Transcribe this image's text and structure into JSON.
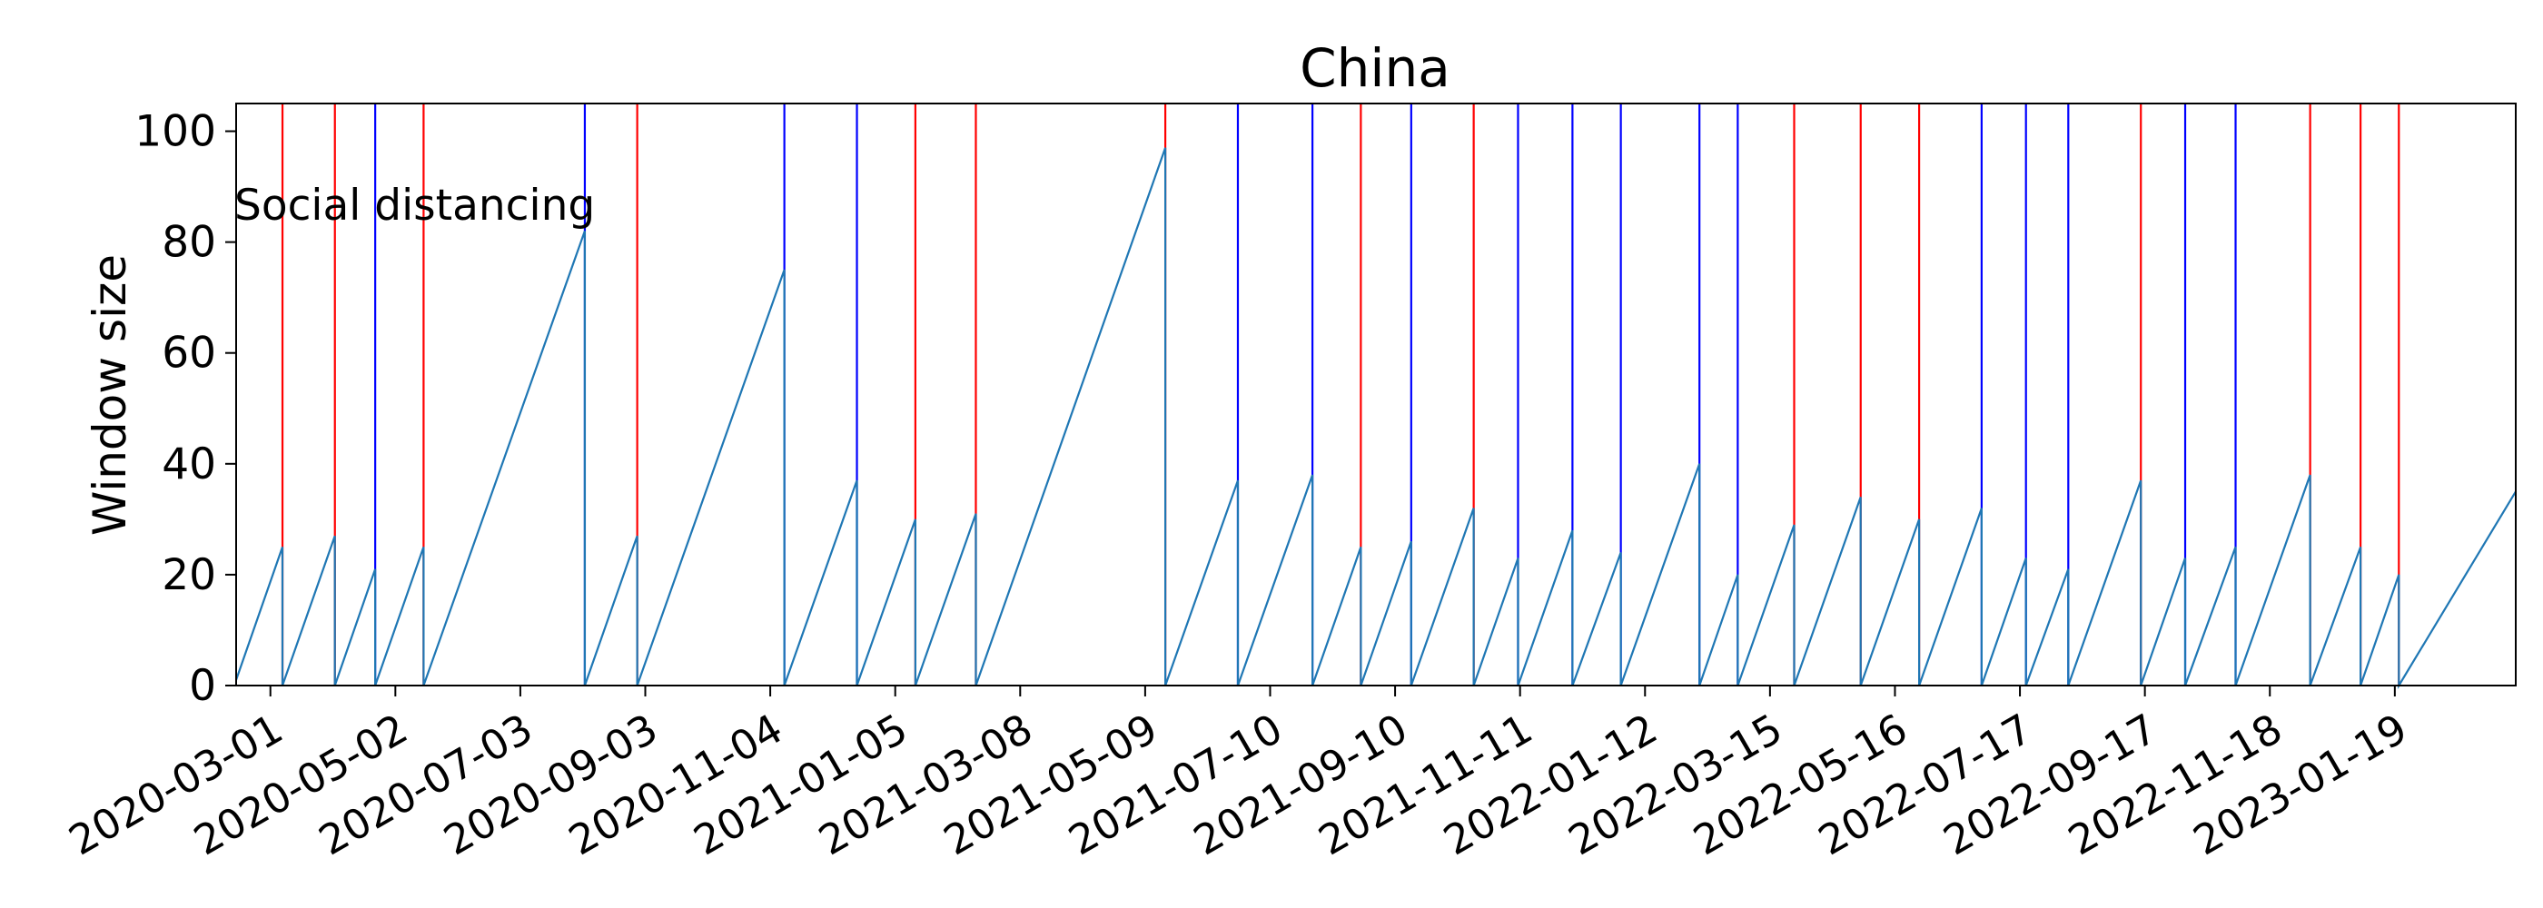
{
  "chart_data": {
    "type": "line",
    "title": "China",
    "ylabel": "Window size",
    "xlabel": "",
    "annotation": "Social distancing",
    "ylim": [
      0,
      105
    ],
    "xlim": [
      "2020-02-13",
      "2023-03-20"
    ],
    "yticks": [
      0,
      20,
      40,
      60,
      80,
      100
    ],
    "xticks": [
      "2020-03-01",
      "2020-05-02",
      "2020-07-03",
      "2020-09-03",
      "2020-11-04",
      "2021-01-05",
      "2021-03-08",
      "2021-05-09",
      "2021-07-10",
      "2021-09-10",
      "2021-11-11",
      "2022-01-12",
      "2022-03-15",
      "2022-05-16",
      "2022-07-17",
      "2022-09-17",
      "2022-11-18",
      "2023-01-19"
    ],
    "grid": false,
    "colors": {
      "series": "#1f77b4",
      "red_marker": "#ff0000",
      "blue_marker": "#0000ff"
    },
    "series": [
      {
        "values": [
          {
            "x": "2020-02-13",
            "y": 1
          },
          {
            "x": "2020-03-07",
            "y": 25
          },
          {
            "x": "2020-03-07",
            "y": 0
          },
          {
            "x": "2020-04-02",
            "y": 27
          },
          {
            "x": "2020-04-02",
            "y": 0
          },
          {
            "x": "2020-04-22",
            "y": 21
          },
          {
            "x": "2020-04-22",
            "y": 0
          },
          {
            "x": "2020-05-16",
            "y": 25
          },
          {
            "x": "2020-05-16",
            "y": 0
          },
          {
            "x": "2020-08-04",
            "y": 82
          },
          {
            "x": "2020-08-04",
            "y": 0
          },
          {
            "x": "2020-08-30",
            "y": 27
          },
          {
            "x": "2020-08-30",
            "y": 0
          },
          {
            "x": "2020-11-11",
            "y": 75
          },
          {
            "x": "2020-11-11",
            "y": 0
          },
          {
            "x": "2020-12-17",
            "y": 37
          },
          {
            "x": "2020-12-17",
            "y": 0
          },
          {
            "x": "2021-01-15",
            "y": 30
          },
          {
            "x": "2021-01-15",
            "y": 0
          },
          {
            "x": "2021-02-14",
            "y": 31
          },
          {
            "x": "2021-02-14",
            "y": 0
          },
          {
            "x": "2021-05-19",
            "y": 97
          },
          {
            "x": "2021-05-19",
            "y": 0
          },
          {
            "x": "2021-06-24",
            "y": 37
          },
          {
            "x": "2021-06-24",
            "y": 0
          },
          {
            "x": "2021-07-31",
            "y": 38
          },
          {
            "x": "2021-07-31",
            "y": 0
          },
          {
            "x": "2021-08-24",
            "y": 25
          },
          {
            "x": "2021-08-24",
            "y": 0
          },
          {
            "x": "2021-09-18",
            "y": 26
          },
          {
            "x": "2021-09-18",
            "y": 0
          },
          {
            "x": "2021-10-19",
            "y": 32
          },
          {
            "x": "2021-10-19",
            "y": 0
          },
          {
            "x": "2021-11-10",
            "y": 23
          },
          {
            "x": "2021-11-10",
            "y": 0
          },
          {
            "x": "2021-12-07",
            "y": 28
          },
          {
            "x": "2021-12-07",
            "y": 0
          },
          {
            "x": "2021-12-31",
            "y": 24
          },
          {
            "x": "2021-12-31",
            "y": 0
          },
          {
            "x": "2022-02-08",
            "y": 40
          },
          {
            "x": "2022-02-08",
            "y": 0
          },
          {
            "x": "2022-02-27",
            "y": 20
          },
          {
            "x": "2022-02-27",
            "y": 0
          },
          {
            "x": "2022-03-27",
            "y": 29
          },
          {
            "x": "2022-03-27",
            "y": 0
          },
          {
            "x": "2022-04-29",
            "y": 34
          },
          {
            "x": "2022-04-29",
            "y": 0
          },
          {
            "x": "2022-05-28",
            "y": 30
          },
          {
            "x": "2022-05-28",
            "y": 0
          },
          {
            "x": "2022-06-28",
            "y": 32
          },
          {
            "x": "2022-06-28",
            "y": 0
          },
          {
            "x": "2022-07-20",
            "y": 23
          },
          {
            "x": "2022-07-20",
            "y": 0
          },
          {
            "x": "2022-08-10",
            "y": 21
          },
          {
            "x": "2022-08-10",
            "y": 0
          },
          {
            "x": "2022-09-15",
            "y": 37
          },
          {
            "x": "2022-09-15",
            "y": 0
          },
          {
            "x": "2022-10-07",
            "y": 23
          },
          {
            "x": "2022-10-07",
            "y": 0
          },
          {
            "x": "2022-11-01",
            "y": 25
          },
          {
            "x": "2022-11-01",
            "y": 0
          },
          {
            "x": "2022-12-08",
            "y": 38
          },
          {
            "x": "2022-12-08",
            "y": 0
          },
          {
            "x": "2023-01-02",
            "y": 25
          },
          {
            "x": "2023-01-02",
            "y": 0
          },
          {
            "x": "2023-01-21",
            "y": 20
          },
          {
            "x": "2023-01-21",
            "y": 0
          },
          {
            "x": "2023-03-20",
            "y": 35
          }
        ]
      }
    ],
    "vertical_lines": [
      {
        "x": "2020-03-07",
        "color": "red"
      },
      {
        "x": "2020-04-02",
        "color": "red"
      },
      {
        "x": "2020-04-22",
        "color": "blue"
      },
      {
        "x": "2020-05-16",
        "color": "red"
      },
      {
        "x": "2020-08-04",
        "color": "blue"
      },
      {
        "x": "2020-08-30",
        "color": "red"
      },
      {
        "x": "2020-11-11",
        "color": "blue"
      },
      {
        "x": "2020-12-17",
        "color": "blue"
      },
      {
        "x": "2021-01-15",
        "color": "red"
      },
      {
        "x": "2021-02-14",
        "color": "red"
      },
      {
        "x": "2021-05-19",
        "color": "red"
      },
      {
        "x": "2021-06-24",
        "color": "blue"
      },
      {
        "x": "2021-07-31",
        "color": "blue"
      },
      {
        "x": "2021-08-24",
        "color": "red"
      },
      {
        "x": "2021-09-18",
        "color": "blue"
      },
      {
        "x": "2021-10-19",
        "color": "red"
      },
      {
        "x": "2021-11-10",
        "color": "blue"
      },
      {
        "x": "2021-12-07",
        "color": "blue"
      },
      {
        "x": "2021-12-31",
        "color": "blue"
      },
      {
        "x": "2022-02-08",
        "color": "blue"
      },
      {
        "x": "2022-02-27",
        "color": "blue"
      },
      {
        "x": "2022-03-27",
        "color": "red"
      },
      {
        "x": "2022-04-29",
        "color": "red"
      },
      {
        "x": "2022-05-28",
        "color": "red"
      },
      {
        "x": "2022-06-28",
        "color": "blue"
      },
      {
        "x": "2022-07-20",
        "color": "blue"
      },
      {
        "x": "2022-08-10",
        "color": "blue"
      },
      {
        "x": "2022-09-15",
        "color": "red"
      },
      {
        "x": "2022-10-07",
        "color": "blue"
      },
      {
        "x": "2022-11-01",
        "color": "blue"
      },
      {
        "x": "2022-12-08",
        "color": "red"
      },
      {
        "x": "2023-01-02",
        "color": "red"
      },
      {
        "x": "2023-01-21",
        "color": "red"
      }
    ]
  }
}
